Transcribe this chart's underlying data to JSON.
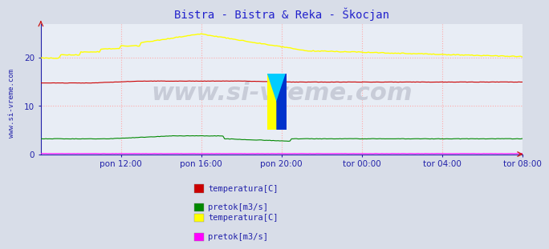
{
  "title": "Bistra - Bistra & Reka - Škocjan",
  "title_color": "#2222cc",
  "title_fontsize": 10,
  "bg_color": "#d8dde8",
  "plot_bg_color": "#e8edf5",
  "grid_color": "#ffaaaa",
  "grid_style": ":",
  "xlim": [
    0,
    288
  ],
  "ylim": [
    0,
    27
  ],
  "yticks": [
    0,
    10,
    20
  ],
  "xtick_labels": [
    "pon 12:00",
    "pon 16:00",
    "pon 20:00",
    "tor 00:00",
    "tor 04:00",
    "tor 08:00"
  ],
  "xtick_positions": [
    48,
    96,
    144,
    192,
    240,
    288
  ],
  "tick_color": "#2222aa",
  "tick_fontsize": 7.5,
  "watermark": "www.si-vreme.com",
  "watermark_color": "#c8ccd8",
  "watermark_fontsize": 22,
  "side_label": "www.si-vreme.com",
  "side_label_color": "#2222aa",
  "side_label_fontsize": 6.5,
  "bistra_temp_color": "#cc0000",
  "bistra_pretok_color": "#008800",
  "reka_temp_color": "#ffff00",
  "reka_pretok_color": "#ff00ff",
  "arrow_color": "#cc2222",
  "legend1_labels": [
    "temperatura[C]",
    "pretok[m3/s]"
  ],
  "legend2_labels": [
    "temperatura[C]",
    "pretok[m3/s]"
  ],
  "legend_text_color": "#2222aa",
  "legend_fontsize": 7.5
}
